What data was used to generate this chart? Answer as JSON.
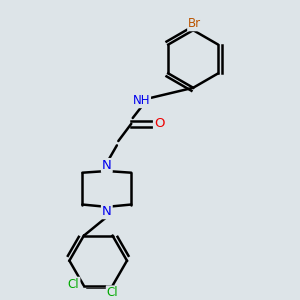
{
  "bg_color": "#e2e8ec",
  "bond_color": "#000000",
  "bond_width": 1.8,
  "atom_colors": {
    "N": "#0000ee",
    "O": "#ee0000",
    "Br": "#bb5500",
    "Cl": "#00aa00",
    "H": "#555555",
    "C": "#000000"
  },
  "font_size": 8.5,
  "fig_bg": "#dde4e8"
}
